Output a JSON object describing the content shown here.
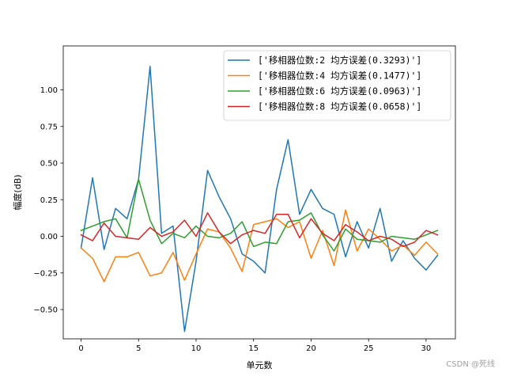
{
  "chart_data": {
    "type": "line",
    "xlabel": "单元数",
    "ylabel": "幅度(dB)",
    "xlim": [
      -1.55,
      32.55
    ],
    "ylim": [
      -0.7,
      1.3
    ],
    "xticks": [
      0,
      5,
      10,
      15,
      20,
      25,
      30
    ],
    "yticks": [
      -0.5,
      -0.25,
      0.0,
      0.25,
      0.5,
      0.75,
      1.0
    ],
    "ytick_labels": [
      "−0.50",
      "−0.25",
      "0.00",
      "0.25",
      "0.50",
      "0.75",
      "1.00"
    ],
    "grid": false,
    "legend_position": "top-right",
    "x": [
      0,
      1,
      2,
      3,
      4,
      5,
      6,
      7,
      8,
      9,
      10,
      11,
      12,
      13,
      14,
      15,
      16,
      17,
      18,
      19,
      20,
      21,
      22,
      23,
      24,
      25,
      26,
      27,
      28,
      29,
      30,
      31
    ],
    "series": [
      {
        "name": "['移相器位数:2  均方误差(0.3293)']",
        "color": "#1f77b4",
        "values": [
          -0.08,
          0.4,
          -0.09,
          0.19,
          0.12,
          0.39,
          1.16,
          0.02,
          0.07,
          -0.65,
          -0.17,
          0.45,
          0.27,
          0.12,
          -0.12,
          -0.17,
          -0.25,
          0.32,
          0.66,
          0.15,
          0.32,
          0.19,
          0.15,
          -0.14,
          0.1,
          -0.08,
          0.19,
          -0.17,
          -0.03,
          -0.15,
          -0.23,
          -0.13
        ]
      },
      {
        "name": "['移相器位数:4  均方误差(0.1477)']",
        "color": "#ff7f0e",
        "values": [
          -0.08,
          -0.15,
          -0.31,
          -0.14,
          -0.14,
          -0.11,
          -0.27,
          -0.25,
          -0.11,
          -0.3,
          -0.12,
          0.05,
          0.03,
          -0.08,
          -0.24,
          0.08,
          0.1,
          0.12,
          0.06,
          0.1,
          -0.15,
          0.04,
          -0.2,
          0.18,
          -0.1,
          0.05,
          -0.02,
          -0.1,
          -0.06,
          -0.13,
          -0.04,
          -0.12
        ]
      },
      {
        "name": "['移相器位数:6  均方误差(0.0963)']",
        "color": "#2ca02c",
        "values": [
          0.04,
          0.07,
          0.1,
          0.12,
          -0.01,
          0.39,
          0.11,
          -0.05,
          0.02,
          -0.01,
          0.07,
          0.0,
          -0.01,
          0.02,
          0.1,
          -0.07,
          -0.04,
          -0.05,
          0.1,
          0.11,
          0.16,
          0.01,
          -0.1,
          0.05,
          -0.02,
          -0.03,
          -0.04,
          0.0,
          -0.01,
          -0.02,
          0.01,
          0.04
        ]
      },
      {
        "name": "['移相器位数:8  均方误差(0.0658)']",
        "color": "#d62728",
        "values": [
          0.01,
          -0.03,
          0.09,
          0.0,
          -0.01,
          -0.02,
          0.06,
          0.0,
          0.03,
          0.11,
          0.0,
          0.16,
          0.03,
          -0.05,
          0.01,
          0.04,
          0.02,
          0.15,
          0.15,
          -0.01,
          0.12,
          0.02,
          -0.03,
          0.08,
          0.03,
          -0.03,
          0.0,
          -0.02,
          -0.07,
          -0.04,
          0.04,
          0.01
        ]
      }
    ]
  },
  "watermark": "CSDN @死线"
}
